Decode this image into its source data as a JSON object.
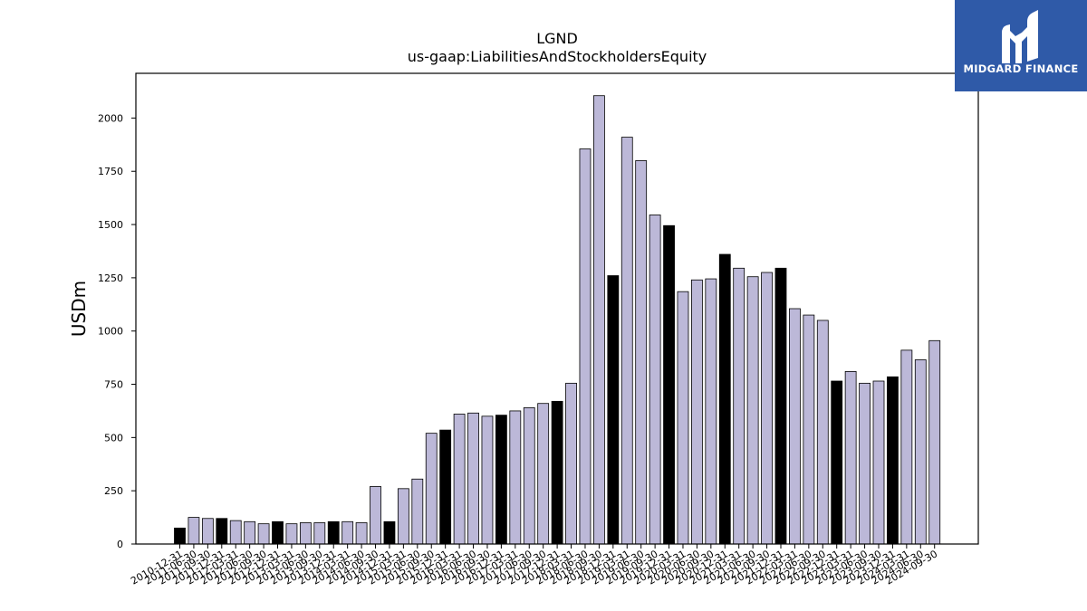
{
  "chart_data": {
    "type": "bar",
    "title": "LGND",
    "subtitle": "us-gaap:LiabilitiesAndStockholdersEquity",
    "xlabel": "",
    "ylabel": "USDm",
    "ylim": [
      0,
      2210
    ],
    "yticks": [
      0,
      250,
      500,
      750,
      1000,
      1250,
      1500,
      1750,
      2000
    ],
    "grid": false,
    "legend": "none",
    "colors": {
      "quarter": "#bcb8d8",
      "year_end": "#000000",
      "edge": "#000000"
    },
    "categories": [
      "2010-12-31",
      "2011-06-30",
      "2011-09-30",
      "2011-12-31",
      "2012-03-31",
      "2012-06-30",
      "2012-09-30",
      "2012-12-31",
      "2013-03-31",
      "2013-06-30",
      "2013-09-30",
      "2013-12-31",
      "2014-03-31",
      "2014-06-30",
      "2014-09-30",
      "2014-12-31",
      "2015-03-31",
      "2015-06-30",
      "2015-09-30",
      "2015-12-31",
      "2016-03-31",
      "2016-06-30",
      "2016-09-30",
      "2016-12-31",
      "2017-03-31",
      "2017-06-30",
      "2017-09-30",
      "2017-12-31",
      "2018-03-31",
      "2018-06-30",
      "2018-09-30",
      "2018-12-31",
      "2019-03-31",
      "2019-06-30",
      "2019-09-30",
      "2019-12-31",
      "2020-03-31",
      "2020-06-30",
      "2020-09-30",
      "2020-12-31",
      "2021-03-31",
      "2021-06-30",
      "2021-09-30",
      "2021-12-31",
      "2022-03-31",
      "2022-06-30",
      "2022-09-30",
      "2022-12-31",
      "2023-03-31",
      "2023-06-30",
      "2023-09-30",
      "2023-12-31",
      "2024-03-31",
      "2024-06-30",
      "2024-09-30"
    ],
    "values": [
      75,
      125,
      120,
      120,
      110,
      105,
      95,
      105,
      95,
      100,
      100,
      105,
      105,
      100,
      270,
      105,
      260,
      305,
      520,
      535,
      610,
      615,
      600,
      605,
      625,
      640,
      660,
      670,
      755,
      1855,
      2105,
      1260,
      1910,
      1800,
      1545,
      1495,
      1185,
      1240,
      1245,
      1360,
      1295,
      1255,
      1275,
      1295,
      1105,
      1075,
      1050,
      765,
      810,
      755,
      765,
      785,
      910,
      865,
      955
    ],
    "year_end": [
      true,
      false,
      false,
      true,
      false,
      false,
      false,
      true,
      false,
      false,
      false,
      true,
      false,
      false,
      false,
      true,
      false,
      false,
      false,
      true,
      false,
      false,
      false,
      true,
      false,
      false,
      false,
      true,
      false,
      false,
      false,
      true,
      false,
      false,
      false,
      true,
      false,
      false,
      false,
      true,
      false,
      false,
      false,
      true,
      false,
      false,
      false,
      true,
      false,
      false,
      false,
      true,
      false,
      false,
      false
    ]
  },
  "logo": {
    "text": "MIDGARD FINANCE",
    "background": "#2f5aa8"
  }
}
